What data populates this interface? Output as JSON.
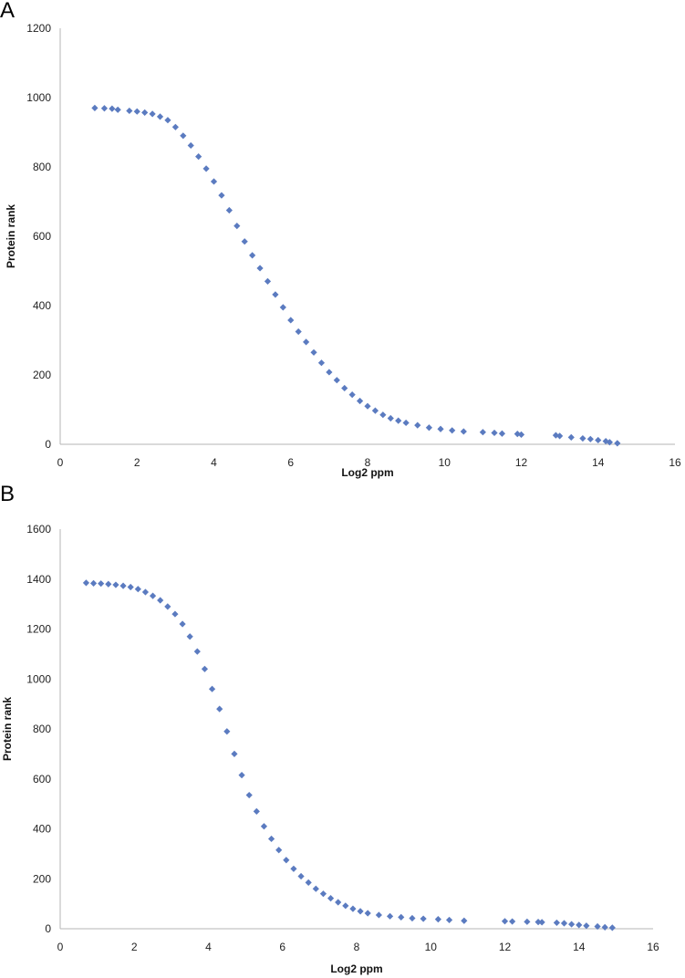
{
  "chart_data": [
    {
      "panel": "A",
      "type": "scatter",
      "xlabel": "Log2 ppm",
      "ylabel": "Protein rank",
      "xlim": [
        0,
        16
      ],
      "ylim": [
        0,
        1200
      ],
      "xticks": [
        "0",
        "2",
        "4",
        "6",
        "8",
        "10",
        "12",
        "14",
        "16"
      ],
      "yticks": [
        "0",
        "200",
        "400",
        "600",
        "800",
        "1000",
        "1200"
      ],
      "grid": false,
      "marker_color": "#5b7bc0",
      "points": [
        [
          0.9,
          970
        ],
        [
          1.15,
          969
        ],
        [
          1.35,
          968
        ],
        [
          1.5,
          965
        ],
        [
          1.8,
          962
        ],
        [
          2.0,
          960
        ],
        [
          2.2,
          957
        ],
        [
          2.4,
          953
        ],
        [
          2.6,
          945
        ],
        [
          2.8,
          935
        ],
        [
          3.0,
          915
        ],
        [
          3.2,
          890
        ],
        [
          3.4,
          862
        ],
        [
          3.6,
          830
        ],
        [
          3.8,
          795
        ],
        [
          4.0,
          758
        ],
        [
          4.2,
          718
        ],
        [
          4.4,
          675
        ],
        [
          4.6,
          630
        ],
        [
          4.8,
          585
        ],
        [
          5.0,
          545
        ],
        [
          5.2,
          508
        ],
        [
          5.4,
          470
        ],
        [
          5.6,
          432
        ],
        [
          5.8,
          395
        ],
        [
          6.0,
          358
        ],
        [
          6.2,
          325
        ],
        [
          6.4,
          295
        ],
        [
          6.6,
          265
        ],
        [
          6.8,
          235
        ],
        [
          7.0,
          208
        ],
        [
          7.2,
          185
        ],
        [
          7.4,
          162
        ],
        [
          7.6,
          143
        ],
        [
          7.8,
          125
        ],
        [
          8.0,
          110
        ],
        [
          8.2,
          97
        ],
        [
          8.4,
          85
        ],
        [
          8.6,
          75
        ],
        [
          8.8,
          68
        ],
        [
          9.0,
          62
        ],
        [
          9.3,
          55
        ],
        [
          9.6,
          48
        ],
        [
          9.9,
          44
        ],
        [
          10.2,
          40
        ],
        [
          10.5,
          37
        ],
        [
          11.0,
          35
        ],
        [
          11.3,
          33
        ],
        [
          11.5,
          31
        ],
        [
          11.9,
          30
        ],
        [
          12.0,
          28
        ],
        [
          12.9,
          26
        ],
        [
          13.0,
          24
        ],
        [
          13.3,
          20
        ],
        [
          13.6,
          17
        ],
        [
          13.8,
          15
        ],
        [
          14.0,
          12
        ],
        [
          14.2,
          9
        ],
        [
          14.3,
          6
        ],
        [
          14.5,
          3
        ]
      ]
    },
    {
      "panel": "B",
      "type": "scatter",
      "xlabel": "Log2 ppm",
      "ylabel": "Protein rank",
      "xlim": [
        0,
        16
      ],
      "ylim": [
        0,
        1600
      ],
      "xticks": [
        "0",
        "2",
        "4",
        "6",
        "8",
        "10",
        "12",
        "14",
        "16"
      ],
      "yticks": [
        "0",
        "200",
        "400",
        "600",
        "800",
        "1000",
        "1200",
        "1400",
        "1600"
      ],
      "grid": false,
      "marker_color": "#5b7bc0",
      "points": [
        [
          0.7,
          1385
        ],
        [
          0.9,
          1383
        ],
        [
          1.1,
          1382
        ],
        [
          1.3,
          1380
        ],
        [
          1.5,
          1377
        ],
        [
          1.7,
          1373
        ],
        [
          1.9,
          1368
        ],
        [
          2.1,
          1360
        ],
        [
          2.3,
          1348
        ],
        [
          2.5,
          1333
        ],
        [
          2.7,
          1315
        ],
        [
          2.9,
          1290
        ],
        [
          3.1,
          1260
        ],
        [
          3.3,
          1220
        ],
        [
          3.5,
          1170
        ],
        [
          3.7,
          1110
        ],
        [
          3.9,
          1040
        ],
        [
          4.1,
          960
        ],
        [
          4.3,
          880
        ],
        [
          4.5,
          790
        ],
        [
          4.7,
          700
        ],
        [
          4.9,
          615
        ],
        [
          5.1,
          535
        ],
        [
          5.3,
          470
        ],
        [
          5.5,
          410
        ],
        [
          5.7,
          360
        ],
        [
          5.9,
          315
        ],
        [
          6.1,
          275
        ],
        [
          6.3,
          240
        ],
        [
          6.5,
          210
        ],
        [
          6.7,
          185
        ],
        [
          6.9,
          160
        ],
        [
          7.1,
          140
        ],
        [
          7.3,
          122
        ],
        [
          7.5,
          106
        ],
        [
          7.7,
          92
        ],
        [
          7.9,
          80
        ],
        [
          8.1,
          70
        ],
        [
          8.3,
          62
        ],
        [
          8.6,
          55
        ],
        [
          8.9,
          50
        ],
        [
          9.2,
          46
        ],
        [
          9.5,
          42
        ],
        [
          9.8,
          40
        ],
        [
          10.2,
          38
        ],
        [
          10.5,
          35
        ],
        [
          10.9,
          32
        ],
        [
          12.0,
          30
        ],
        [
          12.2,
          29
        ],
        [
          12.6,
          28
        ],
        [
          12.9,
          27
        ],
        [
          13.0,
          26
        ],
        [
          13.4,
          24
        ],
        [
          13.6,
          22
        ],
        [
          13.8,
          18
        ],
        [
          14.0,
          15
        ],
        [
          14.2,
          12
        ],
        [
          14.5,
          9
        ],
        [
          14.7,
          6
        ],
        [
          14.9,
          4
        ]
      ]
    }
  ]
}
